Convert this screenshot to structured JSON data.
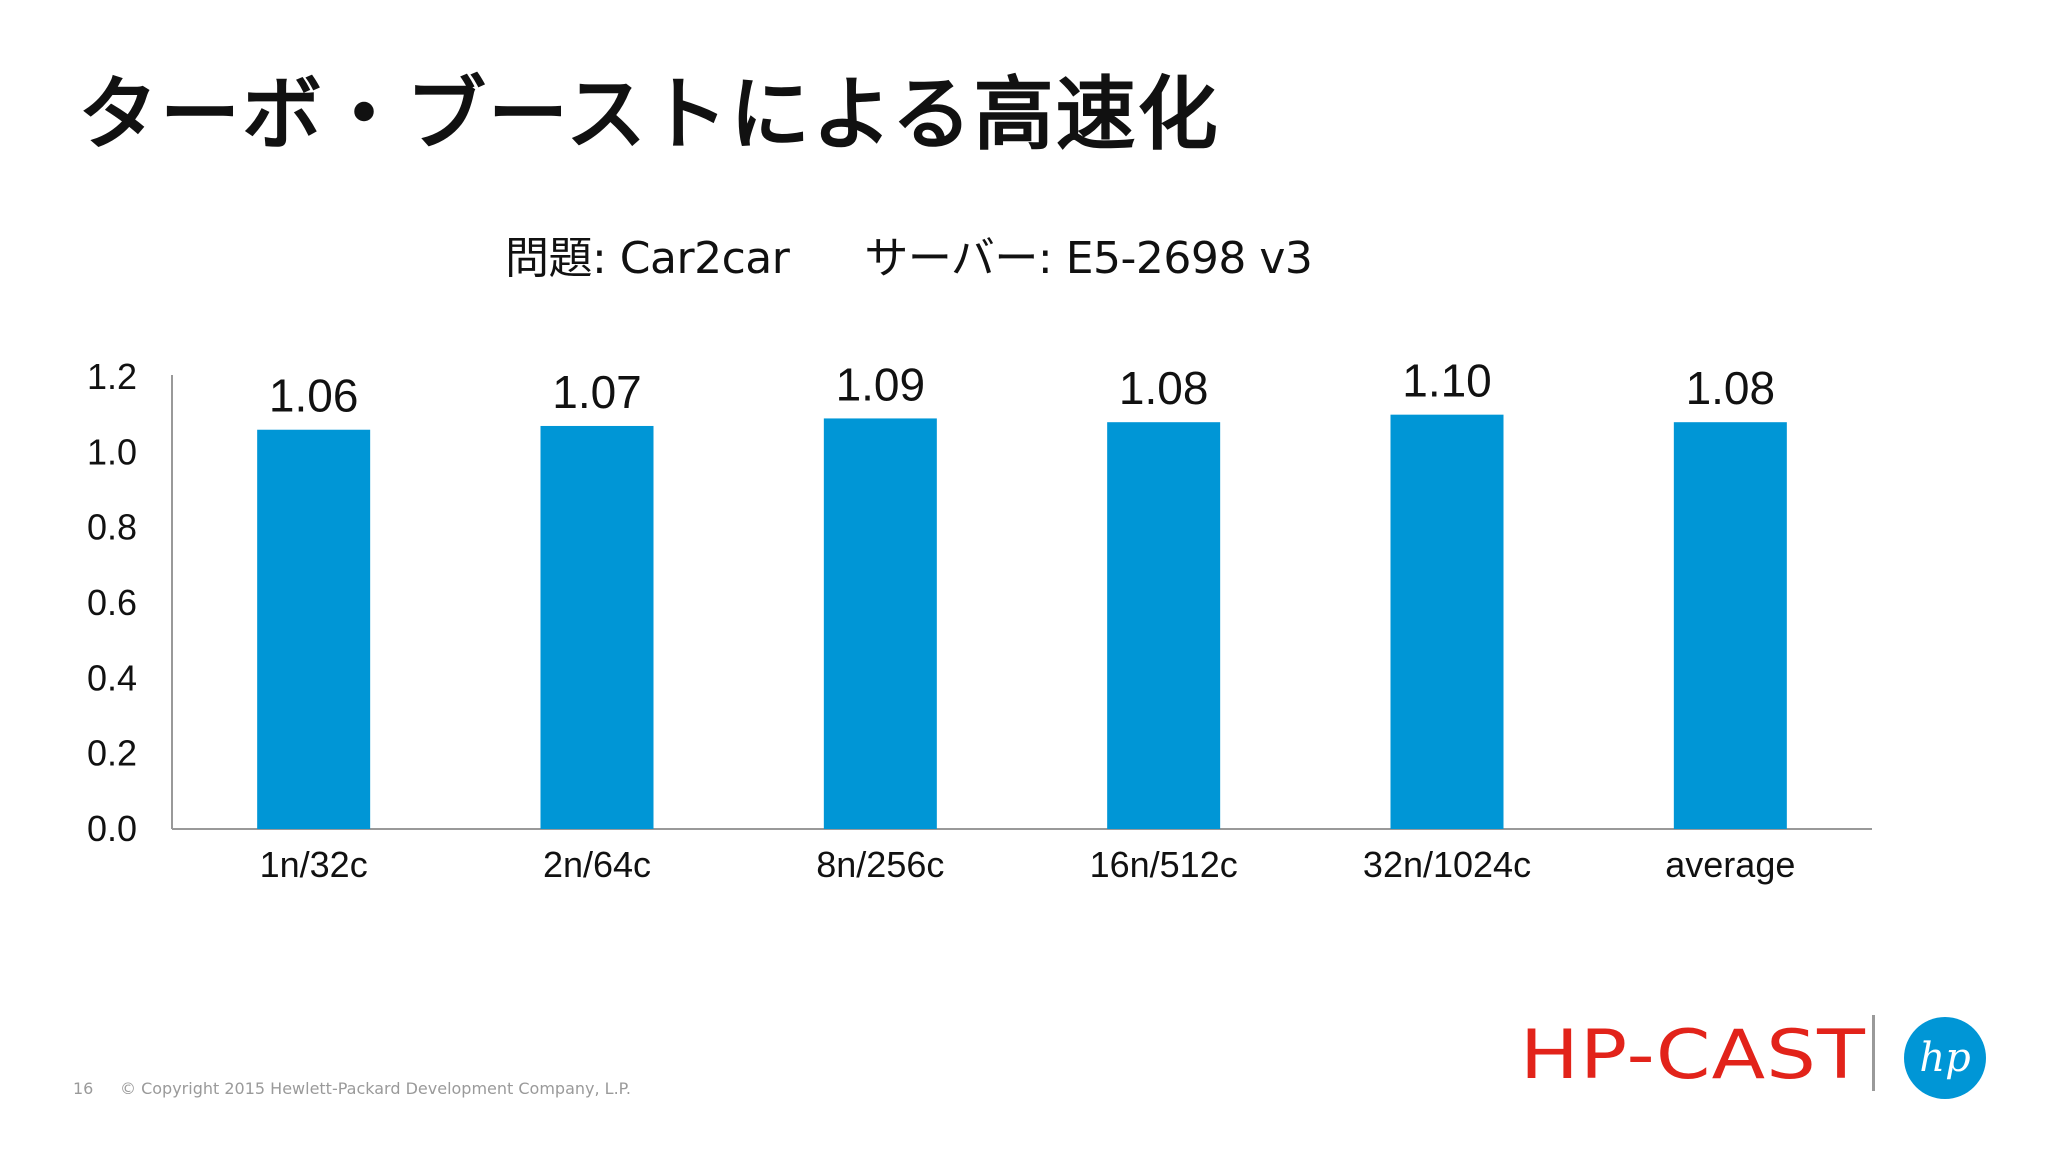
{
  "slide": {
    "title": "ターボ・ブーストによる高速化",
    "subtitle_problem": "問題: Car2car",
    "subtitle_server": "サーバー: E5-2698 v3",
    "page_number": "16",
    "copyright": "© Copyright 2015 Hewlett-Packard Development Company, L.P.",
    "event_logo": "HP-CAST",
    "brand_logo": "hp"
  },
  "colors": {
    "bar": "#0096d6",
    "brand_red": "#e2231a",
    "brand_blue": "#0096d6",
    "text": "#111111",
    "axis": "#999999"
  },
  "chart_data": {
    "type": "bar",
    "categories": [
      "1n/32c",
      "2n/64c",
      "8n/256c",
      "16n/512c",
      "32n/1024c",
      "average"
    ],
    "values": [
      1.06,
      1.07,
      1.09,
      1.08,
      1.1,
      1.08
    ],
    "data_labels": [
      "1.06",
      "1.07",
      "1.09",
      "1.08",
      "1.10",
      "1.08"
    ],
    "ylim": [
      0,
      1.2
    ],
    "yticks": [
      0,
      0.2,
      0.4,
      0.6,
      0.8,
      1.0,
      1.2
    ],
    "ytick_labels": [
      "0.0",
      "0.2",
      "0.4",
      "0.6",
      "0.8",
      "1.0",
      "1.2"
    ],
    "grid": false,
    "legend": "none",
    "title": "",
    "xlabel": "",
    "ylabel": ""
  }
}
